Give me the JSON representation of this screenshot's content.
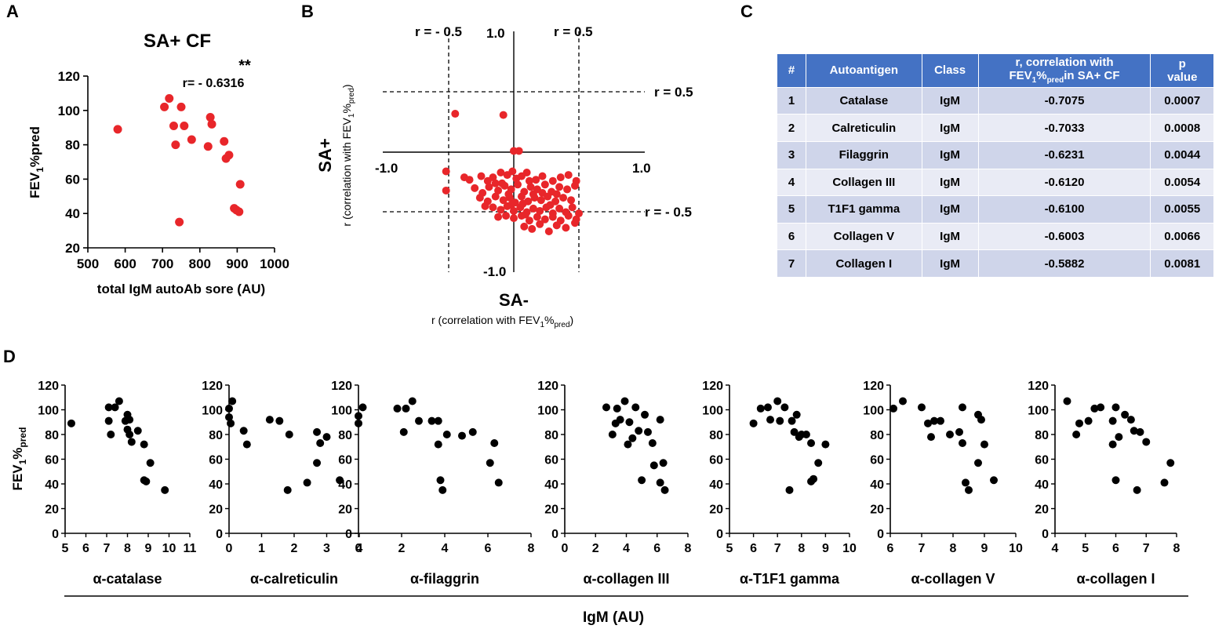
{
  "chart_data": [
    {
      "panel": "A",
      "type": "scatter",
      "title": "SA+ CF",
      "xlabel": "total IgM autoAb sore (AU)",
      "ylabel_main": "FEV",
      "ylabel_sub": "1",
      "ylabel_tail": "%pred",
      "xlim": [
        500,
        1000
      ],
      "ylim": [
        20,
        120
      ],
      "xticks": [
        "500",
        "600",
        "700",
        "800",
        "900",
        "1000"
      ],
      "yticks": [
        "20",
        "40",
        "60",
        "80",
        "100",
        "120"
      ],
      "annotation": "r= - 0.6316",
      "significance": "**",
      "color": "#e8262a",
      "points": [
        [
          580,
          89
        ],
        [
          705,
          102
        ],
        [
          718,
          107
        ],
        [
          730,
          91
        ],
        [
          735,
          80
        ],
        [
          745,
          35
        ],
        [
          750,
          102
        ],
        [
          758,
          91
        ],
        [
          778,
          83
        ],
        [
          822,
          79
        ],
        [
          828,
          96
        ],
        [
          832,
          92
        ],
        [
          865,
          82
        ],
        [
          870,
          72
        ],
        [
          878,
          74
        ],
        [
          892,
          43
        ],
        [
          898,
          42
        ],
        [
          905,
          41
        ],
        [
          908,
          57
        ]
      ]
    },
    {
      "panel": "B",
      "type": "scatter",
      "xlabel_main": "SA-",
      "xlabel_sub": "r (correlation with FEV",
      "ylabel_main": "SA+",
      "ylabel_sub": "r (correlation with FEV",
      "sub_1": "1",
      "sub_pct": "%",
      "sub_pred": "pred",
      "sub_close": ")",
      "xlim": [
        -1.0,
        1.0
      ],
      "ylim": [
        -1.0,
        1.0
      ],
      "tick_labels": {
        "x_min": "-1.0",
        "x_max": "1.0",
        "y_max": "1.0",
        "y_min": "-1.0"
      },
      "ref_labels": {
        "x_neg": "r = - 0.5",
        "x_pos": "r = 0.5",
        "y_pos": "r = 0.5",
        "y_neg": "r = - 0.5"
      },
      "color": "#e8262a",
      "points": [
        [
          -0.45,
          0.32
        ],
        [
          -0.08,
          0.31
        ],
        [
          0.0,
          0.01
        ],
        [
          0.04,
          0.01
        ],
        [
          -0.52,
          -0.16
        ],
        [
          -0.52,
          -0.32
        ],
        [
          -0.38,
          -0.21
        ],
        [
          -0.34,
          -0.23
        ],
        [
          -0.25,
          -0.2
        ],
        [
          -0.2,
          -0.24
        ],
        [
          -0.16,
          -0.21
        ],
        [
          -0.1,
          -0.17
        ],
        [
          -0.05,
          -0.19
        ],
        [
          -0.01,
          -0.16
        ],
        [
          0.06,
          -0.2
        ],
        [
          0.1,
          -0.17
        ],
        [
          0.17,
          -0.23
        ],
        [
          0.22,
          -0.2
        ],
        [
          0.3,
          -0.24
        ],
        [
          0.36,
          -0.21
        ],
        [
          0.42,
          -0.19
        ],
        [
          0.48,
          -0.24
        ],
        [
          -0.3,
          -0.3
        ],
        [
          -0.24,
          -0.34
        ],
        [
          -0.19,
          -0.29
        ],
        [
          -0.12,
          -0.32
        ],
        [
          -0.07,
          -0.28
        ],
        [
          -0.02,
          -0.31
        ],
        [
          0.03,
          -0.27
        ],
        [
          0.08,
          -0.33
        ],
        [
          0.13,
          -0.29
        ],
        [
          0.18,
          -0.31
        ],
        [
          0.24,
          -0.27
        ],
        [
          0.29,
          -0.33
        ],
        [
          0.35,
          -0.29
        ],
        [
          0.41,
          -0.31
        ],
        [
          0.47,
          -0.28
        ],
        [
          -0.26,
          -0.38
        ],
        [
          -0.2,
          -0.41
        ],
        [
          -0.14,
          -0.37
        ],
        [
          -0.08,
          -0.4
        ],
        [
          -0.03,
          -0.38
        ],
        [
          0.01,
          -0.42
        ],
        [
          0.06,
          -0.37
        ],
        [
          0.11,
          -0.41
        ],
        [
          0.16,
          -0.38
        ],
        [
          0.21,
          -0.4
        ],
        [
          0.26,
          -0.37
        ],
        [
          0.32,
          -0.41
        ],
        [
          0.38,
          -0.38
        ],
        [
          0.44,
          -0.4
        ],
        [
          -0.16,
          -0.46
        ],
        [
          -0.1,
          -0.48
        ],
        [
          -0.05,
          -0.45
        ],
        [
          0.0,
          -0.49
        ],
        [
          0.05,
          -0.46
        ],
        [
          0.1,
          -0.5
        ],
        [
          0.15,
          -0.47
        ],
        [
          0.2,
          -0.49
        ],
        [
          0.25,
          -0.46
        ],
        [
          0.3,
          -0.51
        ],
        [
          0.35,
          -0.47
        ],
        [
          0.4,
          -0.5
        ],
        [
          0.45,
          -0.46
        ],
        [
          -0.12,
          -0.54
        ],
        [
          -0.06,
          -0.53
        ],
        [
          0.0,
          -0.55
        ],
        [
          0.06,
          -0.53
        ],
        [
          0.12,
          -0.57
        ],
        [
          0.18,
          -0.54
        ],
        [
          0.24,
          -0.56
        ],
        [
          0.3,
          -0.54
        ],
        [
          0.36,
          -0.57
        ],
        [
          0.42,
          -0.53
        ],
        [
          0.5,
          -0.51
        ],
        [
          0.48,
          -0.56
        ],
        [
          0.08,
          -0.62
        ],
        [
          0.14,
          -0.64
        ],
        [
          0.2,
          -0.6
        ],
        [
          0.27,
          -0.66
        ],
        [
          0.33,
          -0.61
        ],
        [
          0.4,
          -0.63
        ],
        [
          0.47,
          -0.59
        ],
        [
          -0.02,
          -0.44
        ],
        [
          -0.09,
          -0.26
        ],
        [
          0.12,
          -0.24
        ],
        [
          0.28,
          -0.44
        ],
        [
          -0.22,
          -0.45
        ],
        [
          0.22,
          -0.34
        ],
        [
          -0.04,
          -0.35
        ],
        [
          0.07,
          -0.43
        ],
        [
          0.02,
          -0.22
        ],
        [
          0.15,
          -0.35
        ],
        [
          -0.14,
          -0.26
        ],
        [
          0.33,
          -0.35
        ],
        [
          0.09,
          -0.52
        ]
      ]
    },
    {
      "panel": "D",
      "type": "scatter",
      "ylabel_main": "FEV",
      "ylabel_sub": "1",
      "ylabel_pct": "%",
      "ylabel_pred": "pred",
      "ylim": [
        0,
        120
      ],
      "yticks": [
        "0",
        "20",
        "40",
        "60",
        "80",
        "100",
        "120"
      ],
      "group_label": "IgM (AU)",
      "color": "#000000",
      "subplots": [
        {
          "xlabel": "α-catalase",
          "xlim": [
            5,
            11
          ],
          "xticks": [
            "5",
            "6",
            "7",
            "8",
            "9",
            "10",
            "11"
          ],
          "points": [
            [
              5.3,
              89
            ],
            [
              7.1,
              102
            ],
            [
              7.1,
              91
            ],
            [
              7.2,
              80
            ],
            [
              7.4,
              102
            ],
            [
              7.6,
              107
            ],
            [
              7.9,
              91
            ],
            [
              8.0,
              96
            ],
            [
              8.0,
              84
            ],
            [
              8.1,
              92
            ],
            [
              8.1,
              80
            ],
            [
              8.2,
              74
            ],
            [
              8.5,
              83
            ],
            [
              8.8,
              43
            ],
            [
              8.8,
              72
            ],
            [
              8.9,
              42
            ],
            [
              9.1,
              57
            ],
            [
              9.8,
              35
            ]
          ]
        },
        {
          "xlabel": "α-calreticulin",
          "xlim": [
            0,
            4
          ],
          "xticks": [
            "0",
            "1",
            "2",
            "3",
            "4"
          ],
          "points": [
            [
              0.0,
              101
            ],
            [
              0.0,
              94
            ],
            [
              0.05,
              89
            ],
            [
              0.1,
              107
            ],
            [
              0.45,
              83
            ],
            [
              0.55,
              72
            ],
            [
              1.25,
              92
            ],
            [
              1.55,
              91
            ],
            [
              1.85,
              80
            ],
            [
              1.8,
              35
            ],
            [
              2.4,
              41
            ],
            [
              2.7,
              82
            ],
            [
              2.7,
              57
            ],
            [
              2.8,
              73
            ],
            [
              3.0,
              78
            ],
            [
              3.4,
              43
            ]
          ]
        },
        {
          "xlabel": "α-filaggrin",
          "xlim": [
            0,
            8
          ],
          "xticks": [
            "0",
            "2",
            "4",
            "6",
            "8"
          ],
          "points": [
            [
              0.0,
              95
            ],
            [
              0.0,
              89
            ],
            [
              0.2,
              102
            ],
            [
              1.8,
              101
            ],
            [
              2.1,
              82
            ],
            [
              2.2,
              101
            ],
            [
              2.5,
              107
            ],
            [
              2.8,
              91
            ],
            [
              3.4,
              91
            ],
            [
              3.7,
              91
            ],
            [
              3.7,
              72
            ],
            [
              3.8,
              43
            ],
            [
              3.9,
              35
            ],
            [
              4.1,
              80
            ],
            [
              4.8,
              79
            ],
            [
              5.3,
              82
            ],
            [
              6.1,
              57
            ],
            [
              6.3,
              73
            ],
            [
              6.5,
              41
            ]
          ]
        },
        {
          "xlabel": "α-collagen III",
          "xlim": [
            0,
            8
          ],
          "xticks": [
            "0",
            "2",
            "4",
            "6",
            "8"
          ],
          "points": [
            [
              2.7,
              102
            ],
            [
              3.1,
              80
            ],
            [
              3.3,
              89
            ],
            [
              3.4,
              101
            ],
            [
              3.6,
              92
            ],
            [
              3.9,
              107
            ],
            [
              4.1,
              72
            ],
            [
              4.2,
              90
            ],
            [
              4.4,
              77
            ],
            [
              4.6,
              102
            ],
            [
              4.8,
              83
            ],
            [
              5.0,
              43
            ],
            [
              5.2,
              96
            ],
            [
              5.4,
              82
            ],
            [
              5.7,
              73
            ],
            [
              5.8,
              55
            ],
            [
              6.2,
              92
            ],
            [
              6.2,
              41
            ],
            [
              6.4,
              57
            ],
            [
              6.5,
              35
            ]
          ]
        },
        {
          "xlabel": "α-T1F1 gamma",
          "xlim": [
            5,
            10
          ],
          "xticks": [
            "5",
            "6",
            "7",
            "8",
            "9",
            "10"
          ],
          "points": [
            [
              6.0,
              89
            ],
            [
              6.3,
              101
            ],
            [
              6.6,
              102
            ],
            [
              6.7,
              92
            ],
            [
              7.0,
              107
            ],
            [
              7.1,
              91
            ],
            [
              7.3,
              102
            ],
            [
              7.5,
              35
            ],
            [
              7.6,
              91
            ],
            [
              7.7,
              82
            ],
            [
              7.8,
              96
            ],
            [
              7.9,
              78
            ],
            [
              8.0,
              80
            ],
            [
              8.2,
              80
            ],
            [
              8.4,
              73
            ],
            [
              8.4,
              42
            ],
            [
              8.5,
              44
            ],
            [
              8.7,
              57
            ],
            [
              9.0,
              72
            ]
          ]
        },
        {
          "xlabel": "α-collagen V",
          "xlim": [
            6,
            10
          ],
          "xticks": [
            "6",
            "7",
            "8",
            "9",
            "10"
          ],
          "points": [
            [
              6.1,
              101
            ],
            [
              6.4,
              107
            ],
            [
              7.0,
              102
            ],
            [
              7.2,
              89
            ],
            [
              7.3,
              78
            ],
            [
              7.4,
              91
            ],
            [
              7.6,
              91
            ],
            [
              7.9,
              80
            ],
            [
              8.2,
              82
            ],
            [
              8.3,
              73
            ],
            [
              8.3,
              102
            ],
            [
              8.4,
              41
            ],
            [
              8.5,
              35
            ],
            [
              8.8,
              57
            ],
            [
              8.8,
              96
            ],
            [
              8.9,
              92
            ],
            [
              9.0,
              72
            ],
            [
              9.3,
              43
            ]
          ]
        },
        {
          "xlabel": "α-collagen I",
          "xlim": [
            4,
            8
          ],
          "xticks": [
            "4",
            "5",
            "6",
            "7",
            "8"
          ],
          "points": [
            [
              4.4,
              107
            ],
            [
              4.7,
              80
            ],
            [
              4.8,
              89
            ],
            [
              5.1,
              91
            ],
            [
              5.3,
              101
            ],
            [
              5.5,
              102
            ],
            [
              5.9,
              91
            ],
            [
              5.9,
              72
            ],
            [
              6.0,
              43
            ],
            [
              6.0,
              102
            ],
            [
              6.1,
              78
            ],
            [
              6.3,
              96
            ],
            [
              6.5,
              92
            ],
            [
              6.6,
              83
            ],
            [
              6.7,
              35
            ],
            [
              6.8,
              82
            ],
            [
              7.0,
              74
            ],
            [
              7.6,
              41
            ],
            [
              7.8,
              57
            ]
          ]
        }
      ]
    }
  ],
  "panel_labels": {
    "a": "A",
    "b": "B",
    "c": "C",
    "d": "D"
  },
  "table": {
    "headers": {
      "num": "#",
      "antigen": "Autoantigen",
      "class": "Class",
      "r_line1": "r, correlation with",
      "r_fev": "FEV",
      "r_sub1": "1",
      "r_pct": "%",
      "r_pred": "pred",
      "r_tail": "in SA+ CF",
      "p_line1": "p",
      "p_line2": "value"
    },
    "rows": [
      {
        "n": "1",
        "antigen": "Catalase",
        "cls": "IgM",
        "r": "-0.7075",
        "p": "0.0007"
      },
      {
        "n": "2",
        "antigen": "Calreticulin",
        "cls": "IgM",
        "r": "-0.7033",
        "p": "0.0008"
      },
      {
        "n": "3",
        "antigen": "Filaggrin",
        "cls": "IgM",
        "r": "-0.6231",
        "p": "0.0044"
      },
      {
        "n": "4",
        "antigen": "Collagen III",
        "cls": "IgM",
        "r": "-0.6120",
        "p": "0.0054"
      },
      {
        "n": "5",
        "antigen": "T1F1 gamma",
        "cls": "IgM",
        "r": "-0.6100",
        "p": "0.0055"
      },
      {
        "n": "6",
        "antigen": "Collagen V",
        "cls": "IgM",
        "r": "-0.6003",
        "p": "0.0066"
      },
      {
        "n": "7",
        "antigen": "Collagen I",
        "cls": "IgM",
        "r": "-0.5882",
        "p": "0.0081"
      }
    ]
  }
}
